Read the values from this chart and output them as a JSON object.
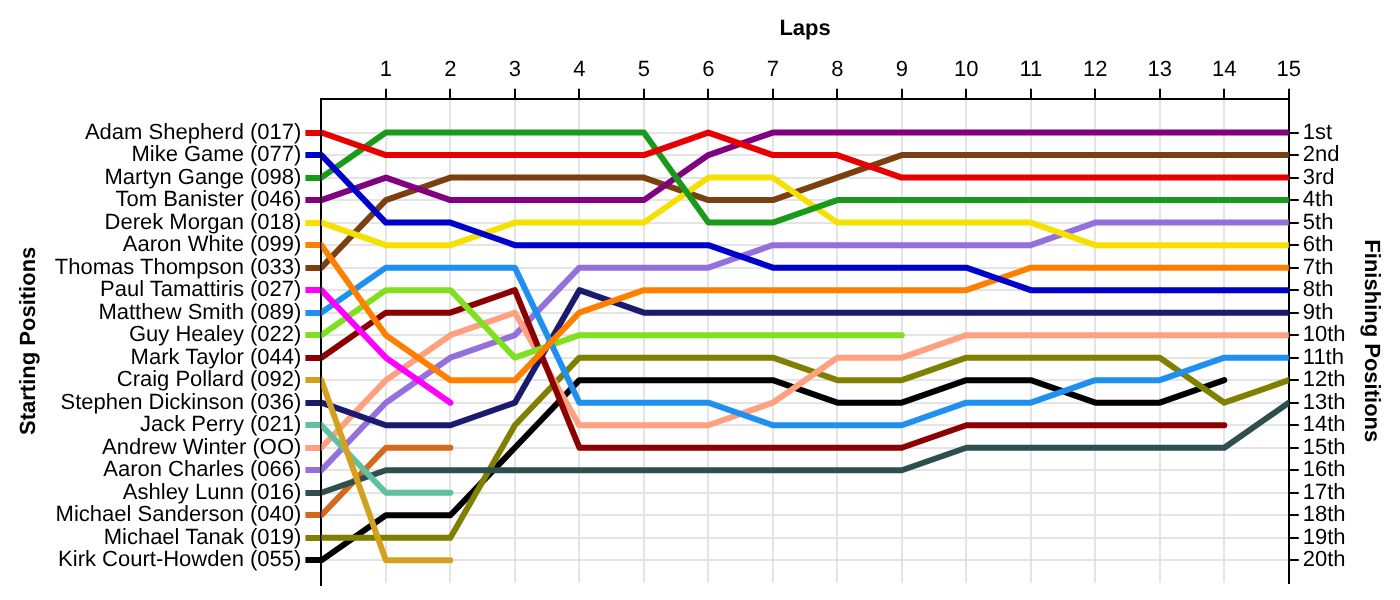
{
  "chart_data": {
    "type": "line",
    "xlabel": "Laps",
    "ylabel": "Finishing Positions",
    "annotations": [
      "Starting Positions"
    ],
    "x": [
      0,
      1,
      2,
      3,
      4,
      5,
      6,
      7,
      8,
      9,
      10,
      11,
      12,
      13,
      14,
      15
    ],
    "xlim": [
      0,
      15
    ],
    "xticks": [
      1,
      2,
      3,
      4,
      5,
      6,
      7,
      8,
      9,
      10,
      11,
      12,
      13,
      14,
      15
    ],
    "ylim": [
      21,
      -0.5
    ],
    "yticks": [
      {
        "value": 1,
        "label": "1st"
      },
      {
        "value": 2,
        "label": "2nd"
      },
      {
        "value": 3,
        "label": "3rd"
      },
      {
        "value": 4,
        "label": "4th"
      },
      {
        "value": 5,
        "label": "5th"
      },
      {
        "value": 6,
        "label": "6th"
      },
      {
        "value": 7,
        "label": "7th"
      },
      {
        "value": 8,
        "label": "8th"
      },
      {
        "value": 9,
        "label": "9th"
      },
      {
        "value": 10,
        "label": "10th"
      },
      {
        "value": 11,
        "label": "11th"
      },
      {
        "value": 12,
        "label": "12th"
      },
      {
        "value": 13,
        "label": "13th"
      },
      {
        "value": 14,
        "label": "14th"
      },
      {
        "value": 15,
        "label": "15th"
      },
      {
        "value": 16,
        "label": "16th"
      },
      {
        "value": 17,
        "label": "17th"
      },
      {
        "value": 18,
        "label": "18th"
      },
      {
        "value": 19,
        "label": "19th"
      },
      {
        "value": 20,
        "label": "20th"
      }
    ],
    "grid": true,
    "legend": "left",
    "marker": "none",
    "line_style": "solid",
    "series": [
      {
        "name": "Adam Shepherd (017)",
        "color": "#e60000",
        "values": [
          1,
          2,
          2,
          2,
          2,
          2,
          1,
          2,
          2,
          3,
          3,
          3,
          3,
          3,
          3,
          3
        ]
      },
      {
        "name": "Mike Game (077)",
        "color": "#0000cc",
        "values": [
          2,
          5,
          5,
          6,
          6,
          6,
          6,
          7,
          7,
          7,
          7,
          8,
          8,
          8,
          8,
          8
        ]
      },
      {
        "name": "Martyn Gange (098)",
        "color": "#1a9a1a",
        "values": [
          3,
          1,
          1,
          1,
          1,
          1,
          5,
          5,
          4,
          4,
          4,
          4,
          4,
          4,
          4,
          4
        ]
      },
      {
        "name": "Tom Banister (046)",
        "color": "#800080",
        "values": [
          4,
          3,
          4,
          4,
          4,
          4,
          2,
          1,
          1,
          1,
          1,
          1,
          1,
          1,
          1,
          1
        ]
      },
      {
        "name": "Derek Morgan (018)",
        "color": "#f5e000",
        "values": [
          5,
          6,
          6,
          5,
          5,
          5,
          3,
          3,
          5,
          5,
          5,
          5,
          6,
          6,
          6,
          6
        ]
      },
      {
        "name": "Aaron White (099)",
        "color": "#ff8000",
        "values": [
          6,
          10,
          12,
          12,
          9,
          8,
          8,
          8,
          8,
          8,
          8,
          7,
          7,
          7,
          7,
          7
        ]
      },
      {
        "name": "Thomas Thompson (033)",
        "color": "#7a4010",
        "values": [
          7,
          4,
          3,
          3,
          3,
          3,
          4,
          4,
          3,
          2,
          2,
          2,
          2,
          2,
          2,
          2
        ]
      },
      {
        "name": "Paul Tamattiris (027)",
        "color": "#ff00ff",
        "values": [
          8,
          11,
          13,
          null,
          null,
          null,
          null,
          null,
          null,
          null,
          null,
          null,
          null,
          null,
          null,
          null
        ]
      },
      {
        "name": "Matthew Smith (089)",
        "color": "#2090f0",
        "values": [
          9,
          7,
          7,
          7,
          13,
          13,
          13,
          14,
          14,
          14,
          13,
          13,
          12,
          12,
          11,
          11
        ]
      },
      {
        "name": "Guy Healey (022)",
        "color": "#80e020",
        "values": [
          10,
          8,
          8,
          11,
          10,
          10,
          10,
          10,
          10,
          10,
          null,
          null,
          null,
          null,
          null,
          null
        ]
      },
      {
        "name": "Mark Taylor (044)",
        "color": "#8b0000",
        "values": [
          11,
          9,
          9,
          8,
          15,
          15,
          15,
          15,
          15,
          15,
          14,
          14,
          14,
          14,
          14,
          null
        ]
      },
      {
        "name": "Craig Pollard (092)",
        "color": "#d4a020",
        "values": [
          12,
          20,
          20,
          null,
          null,
          null,
          null,
          null,
          null,
          null,
          null,
          null,
          null,
          null,
          null,
          null
        ]
      },
      {
        "name": "Stephen Dickinson (036)",
        "color": "#1a1a6e",
        "values": [
          13,
          14,
          14,
          13,
          8,
          9,
          9,
          9,
          9,
          9,
          9,
          9,
          9,
          9,
          9,
          9
        ]
      },
      {
        "name": "Jack Perry (021)",
        "color": "#60c0a0",
        "values": [
          14,
          17,
          17,
          null,
          null,
          null,
          null,
          null,
          null,
          null,
          null,
          null,
          null,
          null,
          null,
          null
        ]
      },
      {
        "name": "Andrew Winter (OO)",
        "color": "#ffa080",
        "values": [
          15,
          12,
          10,
          9,
          14,
          14,
          14,
          13,
          11,
          11,
          10,
          10,
          10,
          10,
          10,
          10
        ]
      },
      {
        "name": "Aaron Charles (066)",
        "color": "#9370db",
        "values": [
          16,
          13,
          11,
          10,
          7,
          7,
          7,
          6,
          6,
          6,
          6,
          6,
          5,
          5,
          5,
          5
        ]
      },
      {
        "name": "Ashley Lunn (016)",
        "color": "#2f4f4f",
        "values": [
          17,
          16,
          16,
          16,
          16,
          16,
          16,
          16,
          16,
          16,
          15,
          15,
          15,
          15,
          15,
          13
        ]
      },
      {
        "name": "Michael Sanderson (040)",
        "color": "#d2691e",
        "values": [
          18,
          15,
          15,
          null,
          null,
          null,
          null,
          null,
          null,
          null,
          null,
          null,
          null,
          null,
          null,
          null
        ]
      },
      {
        "name": "Michael Tanak (019)",
        "color": "#808000",
        "values": [
          19,
          19,
          19,
          14,
          11,
          11,
          11,
          11,
          12,
          12,
          11,
          11,
          11,
          11,
          13,
          12
        ]
      },
      {
        "name": "Kirk Court-Howden (055)",
        "color": "#000000",
        "values": [
          20,
          18,
          18,
          15,
          12,
          12,
          12,
          12,
          13,
          13,
          12,
          12,
          13,
          13,
          12,
          null
        ]
      }
    ]
  }
}
